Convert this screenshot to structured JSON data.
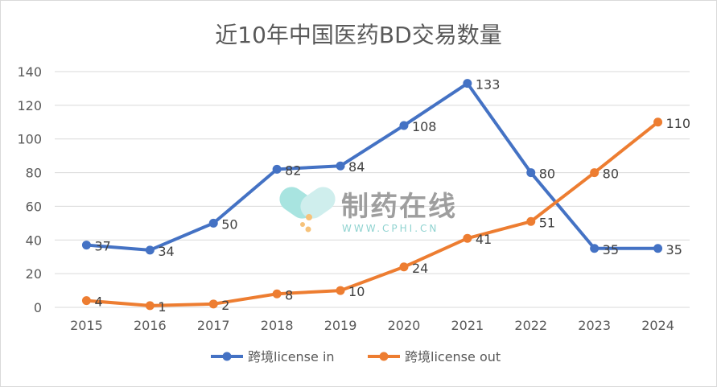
{
  "chart_data": {
    "type": "line",
    "title": "近10年中国医药BD交易数量",
    "categories": [
      "2015",
      "2016",
      "2017",
      "2018",
      "2019",
      "2020",
      "2021",
      "2022",
      "2023",
      "2024"
    ],
    "ylim": [
      0,
      140
    ],
    "yticks": [
      0,
      20,
      40,
      60,
      80,
      100,
      120,
      140
    ],
    "grid": true,
    "legend": "bottom",
    "series": [
      {
        "name": "跨境license in",
        "color": "#4472c4",
        "values": [
          37,
          34,
          50,
          82,
          84,
          108,
          133,
          80,
          35,
          35
        ]
      },
      {
        "name": "跨境license out",
        "color": "#ed7d31",
        "values": [
          4,
          1,
          2,
          8,
          10,
          24,
          41,
          51,
          80,
          110
        ]
      }
    ]
  },
  "watermark": {
    "text": "制药在线",
    "url": "WWW.CPHI.CN"
  }
}
